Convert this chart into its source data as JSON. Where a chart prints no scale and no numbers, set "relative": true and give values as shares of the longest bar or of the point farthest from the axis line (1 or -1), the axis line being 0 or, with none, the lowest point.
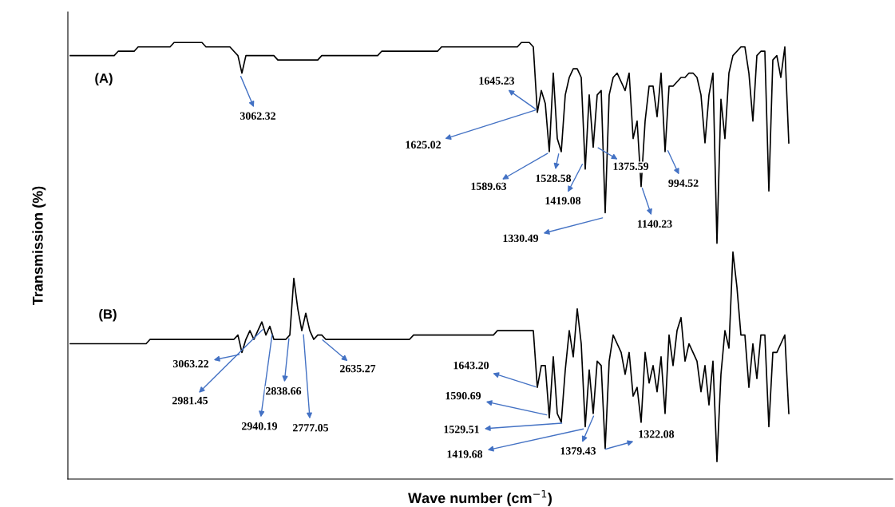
{
  "chart_data": {
    "type": "line",
    "relative": true,
    "xlabel": "Wave number (cm$^{−1}$)",
    "ylabel": "Transmission (%)",
    "categories": [
      null,
      null,
      null,
      null,
      null,
      null,
      null,
      null,
      null,
      null,
      null,
      null,
      null,
      null,
      null,
      null,
      null,
      null,
      null,
      null,
      null,
      null,
      null,
      null,
      null,
      null,
      null,
      null,
      null,
      null,
      null,
      null,
      null,
      null,
      null,
      null,
      null,
      null,
      null,
      null,
      null,
      null,
      null,
      null,
      null,
      null,
      null,
      null,
      null,
      null,
      null,
      null,
      null,
      null,
      null,
      null,
      null,
      null,
      null,
      null,
      null,
      null,
      null,
      null,
      null,
      null,
      null,
      null,
      null,
      null,
      null,
      null,
      null,
      null,
      null,
      null,
      null,
      null,
      null,
      null,
      null,
      null,
      null,
      null,
      null,
      null,
      null,
      null,
      null,
      null,
      null,
      null,
      null,
      null,
      null,
      null,
      null,
      null,
      null,
      null,
      null,
      null,
      null,
      null,
      null,
      null,
      null,
      null,
      null,
      null,
      null,
      null,
      null,
      null,
      null,
      null,
      null,
      null,
      null,
      null,
      null,
      null,
      null,
      null,
      null,
      null,
      null,
      null,
      null,
      null,
      null,
      null,
      null,
      null,
      null,
      null,
      null,
      null,
      null,
      null,
      null,
      null,
      null,
      null,
      null,
      null,
      null,
      null,
      null,
      null,
      null,
      null,
      null,
      null,
      null,
      null,
      null,
      null,
      null,
      null,
      null,
      null,
      null,
      null,
      null,
      null,
      null,
      null,
      null,
      null,
      null,
      null,
      null,
      null,
      null,
      null,
      null,
      null,
      null,
      null,
      null
    ],
    "series": [
      {
        "name": "(A)",
        "color": "#000000",
        "values": [
          0.97,
          0.97,
          0.97,
          0.97,
          0.97,
          0.97,
          0.97,
          0.97,
          0.97,
          0.97,
          0.97,
          0.97,
          0.98,
          0.98,
          0.98,
          0.98,
          0.98,
          0.99,
          0.99,
          0.99,
          0.99,
          0.99,
          0.99,
          0.99,
          0.99,
          0.99,
          1.0,
          1.0,
          1.0,
          1.0,
          1.0,
          1.0,
          1.0,
          1.0,
          0.99,
          0.99,
          0.99,
          0.99,
          0.99,
          0.99,
          0.99,
          0.98,
          0.97,
          0.93,
          0.97,
          0.97,
          0.97,
          0.97,
          0.97,
          0.97,
          0.97,
          0.97,
          0.96,
          0.96,
          0.96,
          0.96,
          0.96,
          0.96,
          0.96,
          0.96,
          0.96,
          0.96,
          0.96,
          0.97,
          0.97,
          0.97,
          0.97,
          0.97,
          0.97,
          0.97,
          0.97,
          0.97,
          0.97,
          0.97,
          0.97,
          0.97,
          0.97,
          0.97,
          0.98,
          0.98,
          0.98,
          0.98,
          0.98,
          0.98,
          0.98,
          0.98,
          0.98,
          0.98,
          0.98,
          0.98,
          0.98,
          0.98,
          0.98,
          0.99,
          0.99,
          0.99,
          0.99,
          0.99,
          0.99,
          0.99,
          0.99,
          0.99,
          0.99,
          0.99,
          0.99,
          0.99,
          0.99,
          0.99,
          0.99,
          0.99,
          0.99,
          0.99,
          0.99,
          1.0,
          1.0,
          1.0,
          0.99,
          0.84,
          0.89,
          0.86,
          0.75,
          0.93,
          0.78,
          0.75,
          0.88,
          0.92,
          0.94,
          0.94,
          0.92,
          0.71,
          0.88,
          0.76,
          0.88,
          0.89,
          0.61,
          0.88,
          0.92,
          0.93,
          0.91,
          0.89,
          0.93,
          0.78,
          0.82,
          0.67,
          0.82,
          0.9,
          0.9,
          0.83,
          0.93,
          0.75,
          0.9,
          0.9,
          0.91,
          0.92,
          0.92,
          0.93,
          0.93,
          0.92,
          0.88,
          0.77,
          0.88,
          0.93,
          0.54,
          0.87,
          0.78,
          0.93,
          0.97,
          0.98,
          0.99,
          0.99,
          0.93,
          0.82,
          0.97,
          0.98,
          0.98,
          0.66,
          0.96,
          0.97,
          0.92,
          0.99,
          0.77
        ]
      },
      {
        "name": "(B)",
        "color": "#000000",
        "values": [
          0.31,
          0.31,
          0.31,
          0.31,
          0.31,
          0.31,
          0.31,
          0.31,
          0.31,
          0.31,
          0.31,
          0.31,
          0.31,
          0.31,
          0.31,
          0.31,
          0.31,
          0.31,
          0.31,
          0.31,
          0.32,
          0.32,
          0.32,
          0.32,
          0.32,
          0.32,
          0.32,
          0.32,
          0.32,
          0.32,
          0.32,
          0.32,
          0.32,
          0.32,
          0.32,
          0.32,
          0.32,
          0.32,
          0.32,
          0.32,
          0.32,
          0.32,
          0.33,
          0.29,
          0.32,
          0.34,
          0.32,
          0.34,
          0.36,
          0.33,
          0.35,
          0.32,
          0.32,
          0.32,
          0.32,
          0.33,
          0.46,
          0.39,
          0.34,
          0.38,
          0.34,
          0.32,
          0.33,
          0.33,
          0.32,
          0.32,
          0.32,
          0.32,
          0.32,
          0.32,
          0.32,
          0.32,
          0.32,
          0.32,
          0.32,
          0.32,
          0.32,
          0.32,
          0.32,
          0.32,
          0.32,
          0.32,
          0.32,
          0.32,
          0.32,
          0.32,
          0.33,
          0.33,
          0.33,
          0.33,
          0.33,
          0.33,
          0.33,
          0.33,
          0.33,
          0.33,
          0.33,
          0.33,
          0.33,
          0.33,
          0.33,
          0.33,
          0.33,
          0.33,
          0.33,
          0.33,
          0.33,
          0.34,
          0.34,
          0.34,
          0.34,
          0.34,
          0.34,
          0.34,
          0.34,
          0.34,
          0.34,
          0.21,
          0.26,
          0.26,
          0.14,
          0.28,
          0.15,
          0.13,
          0.25,
          0.34,
          0.28,
          0.39,
          0.31,
          0.12,
          0.25,
          0.15,
          0.27,
          0.26,
          0.07,
          0.27,
          0.33,
          0.31,
          0.29,
          0.24,
          0.29,
          0.19,
          0.21,
          0.13,
          0.29,
          0.22,
          0.26,
          0.2,
          0.28,
          0.15,
          0.33,
          0.26,
          0.34,
          0.37,
          0.27,
          0.31,
          0.29,
          0.27,
          0.2,
          0.26,
          0.17,
          0.27,
          0.04,
          0.24,
          0.34,
          0.3,
          0.52,
          0.44,
          0.33,
          0.33,
          0.21,
          0.31,
          0.23,
          0.33,
          0.33,
          0.12,
          0.29,
          0.29,
          0.31,
          0.33,
          0.15
        ]
      }
    ],
    "annotations": [
      "3062.32",
      "1645.23",
      "1625.02",
      "1589.63",
      "1528.58",
      "1419.08",
      "1375.59",
      "1140.23",
      "994.52",
      "1330.49",
      "3063.22",
      "2981.45",
      "2940.19",
      "2838.66",
      "2777.05",
      "2635.27",
      "1643.20",
      "1590.69",
      "1529.51",
      "1419.68",
      "1379.43",
      "1322.08"
    ]
  }
}
